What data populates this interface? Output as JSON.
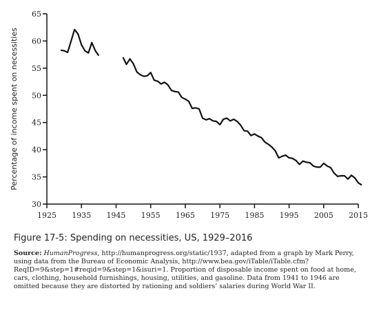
{
  "chart_data": {
    "type": "line",
    "y_label": "Percentage of income spent on necessities",
    "x": [
      1929,
      1930,
      1931,
      1932,
      1933,
      1934,
      1935,
      1936,
      1937,
      1938,
      1939,
      1940,
      1941,
      1942,
      1943,
      1944,
      1945,
      1946,
      1947,
      1948,
      1949,
      1950,
      1951,
      1952,
      1953,
      1954,
      1955,
      1956,
      1957,
      1958,
      1959,
      1960,
      1961,
      1962,
      1963,
      1964,
      1965,
      1966,
      1967,
      1968,
      1969,
      1970,
      1971,
      1972,
      1973,
      1974,
      1975,
      1976,
      1977,
      1978,
      1979,
      1980,
      1981,
      1982,
      1983,
      1984,
      1985,
      1986,
      1987,
      1988,
      1989,
      1990,
      1991,
      1992,
      1993,
      1994,
      1995,
      1996,
      1997,
      1998,
      1999,
      2000,
      2001,
      2002,
      2003,
      2004,
      2005,
      2006,
      2007,
      2008,
      2009,
      2010,
      2011,
      2012,
      2013,
      2014,
      2015,
      2016
    ],
    "values": [
      58.3,
      58.2,
      57.9,
      60.0,
      62.1,
      61.3,
      59.3,
      58.2,
      57.8,
      59.7,
      58.2,
      57.3,
      null,
      null,
      null,
      null,
      null,
      null,
      57.0,
      55.7,
      56.7,
      55.8,
      54.3,
      53.8,
      53.5,
      53.6,
      54.2,
      52.8,
      52.6,
      52.1,
      52.4,
      51.9,
      50.9,
      50.7,
      50.6,
      49.6,
      49.3,
      48.9,
      47.6,
      47.7,
      47.5,
      45.8,
      45.5,
      45.7,
      45.3,
      45.2,
      44.6,
      45.6,
      45.8,
      45.3,
      45.6,
      45.2,
      44.5,
      43.5,
      43.4,
      42.6,
      42.9,
      42.5,
      42.2,
      41.4,
      41.0,
      40.5,
      39.8,
      38.5,
      38.8,
      39.0,
      38.5,
      38.4,
      38.0,
      37.3,
      37.9,
      37.7,
      37.6,
      37.0,
      36.8,
      36.8,
      37.5,
      37.0,
      36.7,
      35.7,
      35.1,
      35.2,
      35.2,
      34.6,
      35.3,
      34.8,
      33.9,
      33.5
    ],
    "color": "#111111",
    "xlim": [
      1925,
      2015
    ],
    "xticks": [
      1925,
      1935,
      1945,
      1955,
      1965,
      1975,
      1985,
      1995,
      2005,
      2015
    ],
    "ylim": [
      30,
      65
    ],
    "yticks": [
      30,
      35,
      40,
      45,
      50,
      55,
      60,
      65
    ]
  },
  "caption": "Figure 17-5: Spending on necessities, US, 1929–2016",
  "source": {
    "label": "Source:",
    "italic": "HumanProgress",
    "text": ", http://humanprogress.org/static/1937, adapted from a graph by Mark Perry, using data from the Bureau of Economic Analysis, http://www.bea.gov/iTable/iTable.cfm?ReqID=9&step=1#reqid=9&step=1&isuri=1. Proportion of disposable income spent on food at home, cars, clothing, household furnishings, housing, utilities, and gasoline. Data from 1941 to 1946 are omitted because they are distorted by rationing and soldiers’ salaries during World War II."
  }
}
